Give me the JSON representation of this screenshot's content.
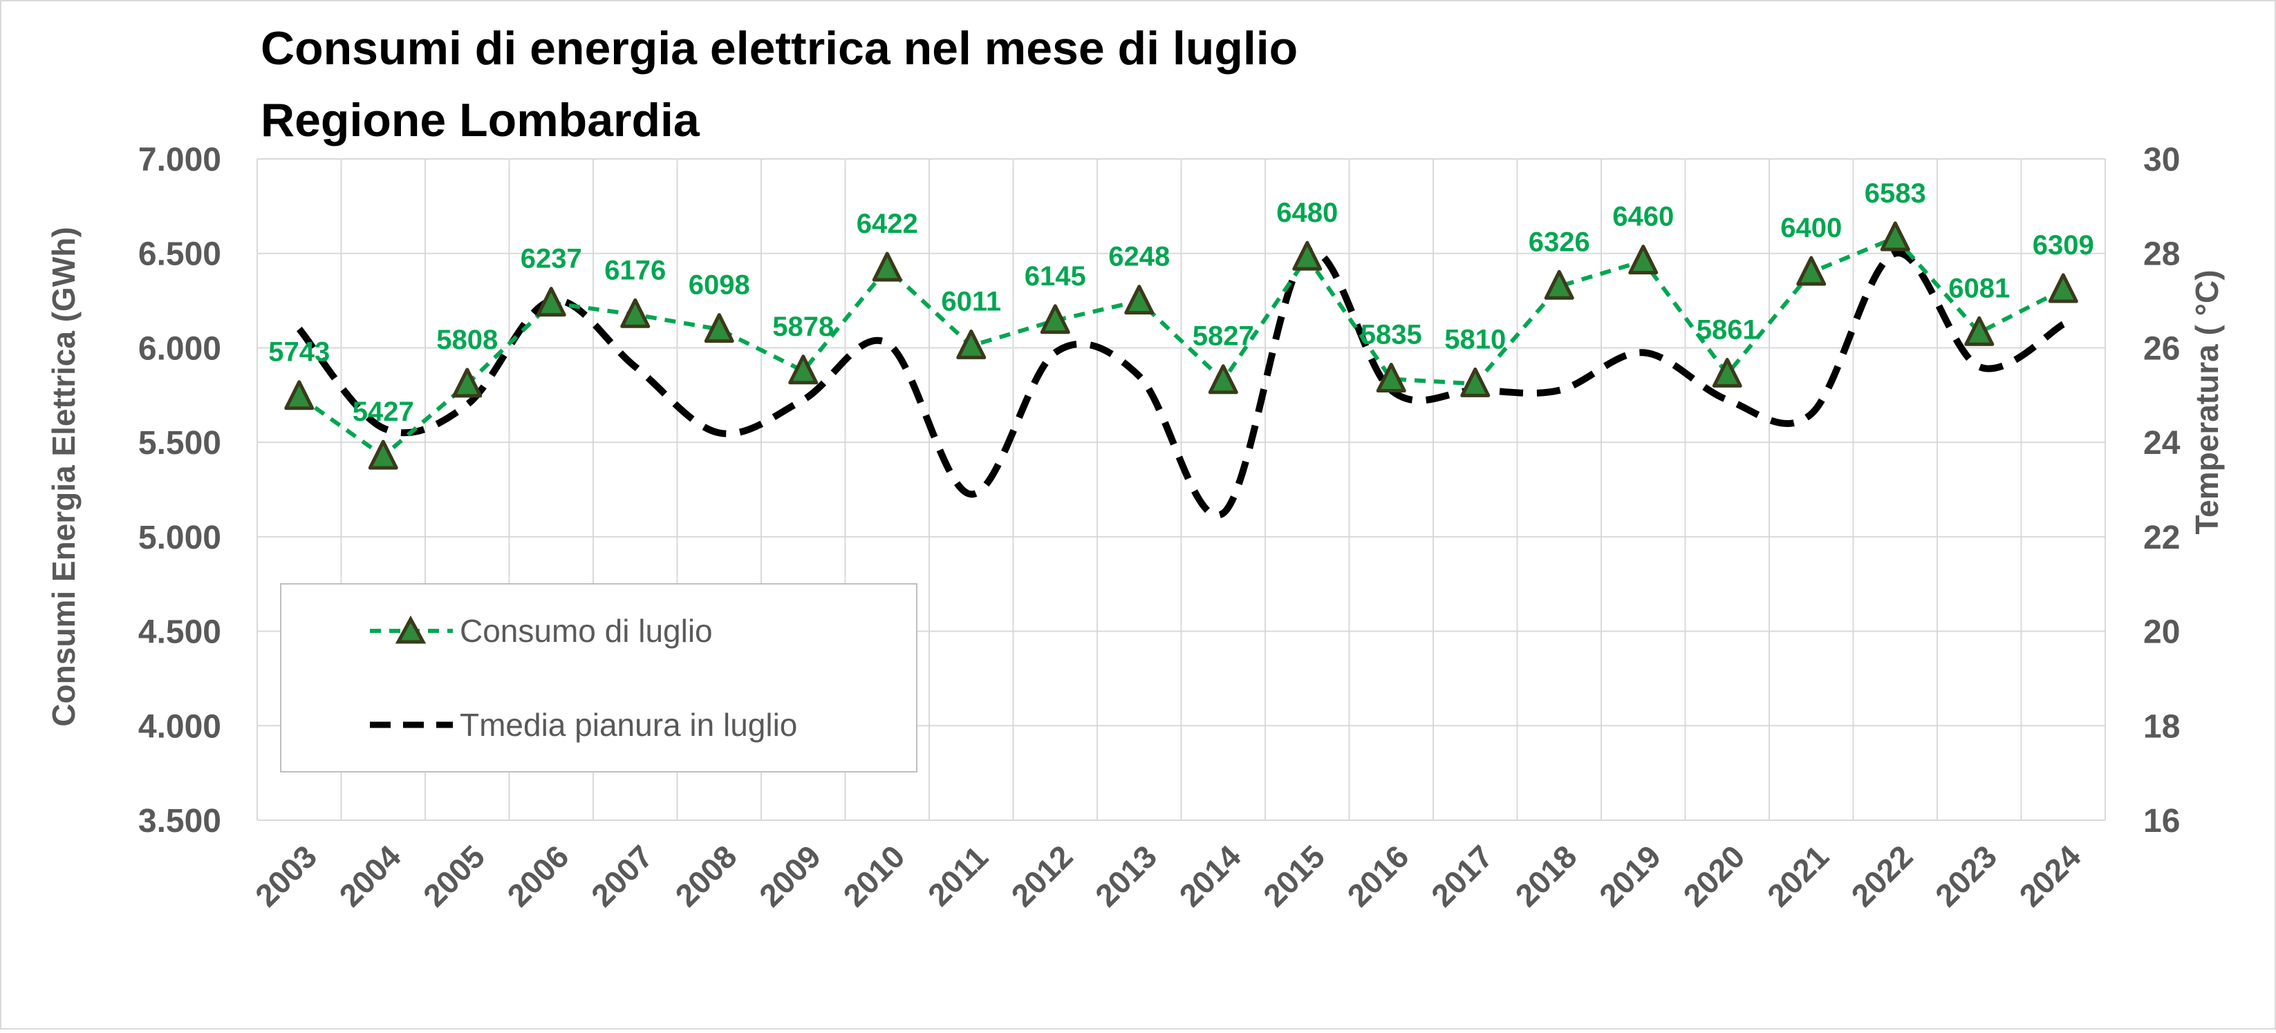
{
  "chart_data": {
    "type": "line",
    "title_line1": "Consumi di energia elettrica nel mese di luglio",
    "title_line2": "Regione Lombardia",
    "ylabel": "Consumi Energia Elettrica (GWh)",
    "y2label": "Temperatura ( °C)",
    "ylim": [
      3500,
      7000
    ],
    "y_ticks": [
      3500,
      4000,
      4500,
      5000,
      5500,
      6000,
      6500,
      7000
    ],
    "y_tick_labels": [
      "3.500",
      "4.000",
      "4.500",
      "5.000",
      "5.500",
      "6.000",
      "6.500",
      "7.000"
    ],
    "y2lim": [
      16,
      30
    ],
    "y2_ticks": [
      16,
      18,
      20,
      22,
      24,
      26,
      28,
      30
    ],
    "y2_tick_labels": [
      "16",
      "18",
      "20",
      "22",
      "24",
      "26",
      "28",
      "30"
    ],
    "categories": [
      "2003",
      "2004",
      "2005",
      "2006",
      "2007",
      "2008",
      "2009",
      "2010",
      "2011",
      "2012",
      "2013",
      "2014",
      "2015",
      "2016",
      "2017",
      "2018",
      "2019",
      "2020",
      "2021",
      "2022",
      "2023",
      "2024"
    ],
    "grid": true,
    "legend_position": "bottom-left",
    "series": [
      {
        "name": "Consumo di luglio",
        "axis": "left",
        "color": "#00a651",
        "marker_fill": "#2e8b3a",
        "marker_stroke": "#3a3a1a",
        "values": [
          5743,
          5427,
          5808,
          6237,
          6176,
          6098,
          5878,
          6422,
          6011,
          6145,
          6248,
          5827,
          6480,
          5835,
          5810,
          6326,
          6460,
          5861,
          6400,
          6583,
          6081,
          6309
        ],
        "labels": [
          "5743",
          "5427",
          "5808",
          "6237",
          "6176",
          "6098",
          "5878",
          "6422",
          "6011",
          "6145",
          "6248",
          "5827",
          "6480",
          "5835",
          "5810",
          "6326",
          "6460",
          "5861",
          "6400",
          "6583",
          "6081",
          "6309"
        ]
      },
      {
        "name": "Tmedia pianura in luglio",
        "axis": "right",
        "color": "#000000",
        "values": [
          26.4,
          24.3,
          24.8,
          27.0,
          25.6,
          24.2,
          24.9,
          26.1,
          22.9,
          25.9,
          25.4,
          22.5,
          28.0,
          25.1,
          25.1,
          25.1,
          25.9,
          24.9,
          24.6,
          28.0,
          25.6,
          26.5
        ]
      }
    ]
  }
}
